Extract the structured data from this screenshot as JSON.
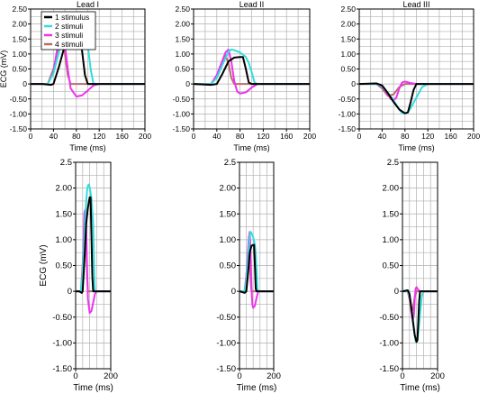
{
  "chart_data": [
    {
      "type": "line",
      "title": "Lead I",
      "xlabel": "Time (ms)",
      "ylabel": "ECG (mV)",
      "xlim": [
        0,
        200
      ],
      "ylim": [
        -1.5,
        2.5
      ],
      "xticks": [
        "0",
        "40",
        "80",
        "120",
        "160",
        "200"
      ],
      "yticks": [
        "-1.50",
        "-1.00",
        "-0.50",
        "0",
        "0.50",
        "1.00",
        "1.50",
        "2.00",
        "2.50"
      ],
      "grid": true,
      "legend": {
        "position": "top-left",
        "entries": [
          "1 stimulus",
          "2 stimuli",
          "3 stimuli",
          "4 stimuli"
        ]
      },
      "series": [
        {
          "name": "1 stimulus",
          "color": "#000000",
          "x": [
            0,
            20,
            30,
            35,
            40,
            50,
            60,
            70,
            80,
            85,
            90,
            95,
            100,
            110,
            120,
            200
          ],
          "y": [
            0,
            0,
            -0.02,
            -0.03,
            0,
            0.6,
            1.3,
            1.62,
            1.82,
            1.82,
            1.1,
            0.3,
            0,
            0,
            0,
            0
          ]
        },
        {
          "name": "2 stimuli",
          "color": "#33dddd",
          "x": [
            0,
            30,
            40,
            50,
            60,
            65,
            70,
            75,
            80,
            90,
            100,
            105,
            110,
            120,
            200
          ],
          "y": [
            0,
            0,
            0.35,
            1.1,
            1.72,
            1.95,
            2.05,
            2.07,
            2.02,
            1.8,
            1.3,
            0.5,
            0,
            0,
            0
          ]
        },
        {
          "name": "3 stimuli",
          "color": "#ee33ee",
          "x": [
            0,
            30,
            40,
            45,
            50,
            55,
            60,
            65,
            70,
            80,
            90,
            100,
            110,
            120,
            200
          ],
          "y": [
            0,
            0,
            0.4,
            1.0,
            1.52,
            1.58,
            1.3,
            0.5,
            -0.15,
            -0.42,
            -0.38,
            -0.22,
            -0.05,
            0,
            0
          ]
        },
        {
          "name": "4 stimuli",
          "color": "#b46e6e",
          "x": [
            0,
            30,
            40,
            50,
            55,
            60,
            65,
            70,
            80,
            200
          ],
          "y": [
            0,
            0,
            0.5,
            1.25,
            1.5,
            1.0,
            0.3,
            0,
            0,
            0
          ]
        }
      ]
    },
    {
      "type": "line",
      "title": "Lead II",
      "xlabel": "Time (ms)",
      "ylabel": "",
      "xlim": [
        0,
        200
      ],
      "ylim": [
        -1.5,
        2.5
      ],
      "xticks": [
        "0",
        "40",
        "80",
        "120",
        "160",
        "200"
      ],
      "yticks": [
        "-1.50",
        "-1.00",
        "-0.50",
        "0",
        "0.50",
        "1.00",
        "1.50",
        "2.00",
        "2.50"
      ],
      "grid": true,
      "series": [
        {
          "name": "1 stimulus",
          "color": "#000000",
          "x": [
            0,
            30,
            40,
            50,
            60,
            70,
            80,
            85,
            90,
            95,
            100,
            110,
            200
          ],
          "y": [
            0,
            -0.03,
            0,
            0.35,
            0.75,
            0.88,
            0.9,
            0.9,
            0.5,
            0.05,
            0,
            0,
            0
          ]
        },
        {
          "name": "2 stimuli",
          "color": "#33dddd",
          "x": [
            0,
            30,
            40,
            50,
            60,
            65,
            70,
            80,
            90,
            95,
            100,
            105,
            110,
            200
          ],
          "y": [
            0,
            0,
            0.2,
            0.65,
            1.08,
            1.15,
            1.13,
            1.05,
            0.9,
            0.7,
            0.4,
            0.05,
            0,
            0
          ]
        },
        {
          "name": "3 stimuli",
          "color": "#ee33ee",
          "x": [
            0,
            30,
            40,
            50,
            55,
            60,
            65,
            70,
            75,
            80,
            90,
            100,
            110,
            200
          ],
          "y": [
            0,
            0,
            0.3,
            0.8,
            1.05,
            1.15,
            0.75,
            0.1,
            -0.25,
            -0.32,
            -0.28,
            -0.12,
            0,
            0
          ]
        },
        {
          "name": "4 stimuli",
          "color": "#b46e6e",
          "x": [
            0,
            30,
            40,
            50,
            55,
            60,
            65,
            70,
            80,
            200
          ],
          "y": [
            0,
            0,
            0.25,
            0.75,
            0.95,
            0.7,
            0.2,
            0,
            0,
            0
          ]
        }
      ]
    },
    {
      "type": "line",
      "title": "Lead III",
      "xlabel": "Time (ms)",
      "ylabel": "",
      "xlim": [
        0,
        200
      ],
      "ylim": [
        -1.5,
        2.5
      ],
      "xticks": [
        "0",
        "40",
        "80",
        "120",
        "160",
        "200"
      ],
      "yticks": [
        "-1.50",
        "-1.00",
        "-0.50",
        "0",
        "0.50",
        "1.00",
        "1.50",
        "2.00",
        "2.50"
      ],
      "grid": true,
      "series": [
        {
          "name": "1 stimulus",
          "color": "#000000",
          "x": [
            0,
            30,
            40,
            50,
            60,
            70,
            80,
            85,
            90,
            95,
            100,
            110,
            200
          ],
          "y": [
            0,
            0.02,
            -0.05,
            -0.3,
            -0.6,
            -0.85,
            -0.98,
            -0.95,
            -0.6,
            -0.2,
            0,
            0,
            0
          ]
        },
        {
          "name": "2 stimuli",
          "color": "#33dddd",
          "x": [
            0,
            30,
            40,
            50,
            60,
            70,
            75,
            80,
            85,
            90,
            100,
            110,
            120,
            200
          ],
          "y": [
            0,
            0,
            -0.08,
            -0.3,
            -0.55,
            -0.85,
            -0.97,
            -0.98,
            -0.95,
            -0.8,
            -0.45,
            -0.1,
            0,
            0
          ]
        },
        {
          "name": "3 stimuli",
          "color": "#ee33ee",
          "x": [
            0,
            30,
            40,
            50,
            55,
            60,
            65,
            70,
            75,
            80,
            90,
            100,
            200
          ],
          "y": [
            0,
            0,
            -0.1,
            -0.35,
            -0.5,
            -0.55,
            -0.45,
            -0.15,
            0.05,
            0.08,
            0.03,
            0,
            0
          ]
        },
        {
          "name": "4 stimuli",
          "color": "#b46e6e",
          "x": [
            0,
            30,
            40,
            50,
            60,
            70,
            80,
            200
          ],
          "y": [
            0,
            0,
            -0.15,
            -0.4,
            -0.35,
            -0.1,
            0,
            0
          ]
        }
      ]
    },
    {
      "type": "line",
      "title": "",
      "xlabel": "Time (ms)",
      "ylabel": "ECG (mV)",
      "xlim": [
        0,
        200
      ],
      "ylim": [
        -1.5,
        2.5
      ],
      "xticks": [
        "0",
        "200"
      ],
      "yticks": [
        "-1.50",
        "-1.00",
        "-0.50",
        "0",
        "0.50",
        "1.00",
        "1.50",
        "2.00",
        "2.5"
      ],
      "grid": true,
      "same_data_as": "Lead I"
    },
    {
      "type": "line",
      "title": "",
      "xlabel": "Time (ms)",
      "ylabel": "",
      "xlim": [
        0,
        200
      ],
      "ylim": [
        -1.5,
        2.5
      ],
      "xticks": [
        "0",
        "200"
      ],
      "yticks": [
        "-1.50",
        "-1.00",
        "-0.50",
        "0",
        "0.50",
        "1.00",
        "1.50",
        "2.00",
        "2.5"
      ],
      "grid": true,
      "same_data_as": "Lead II"
    },
    {
      "type": "line",
      "title": "",
      "xlabel": "Time (ms)",
      "ylabel": "",
      "xlim": [
        0,
        200
      ],
      "ylim": [
        -1.5,
        2.5
      ],
      "xticks": [
        "0",
        "200"
      ],
      "yticks": [
        "-1.50",
        "-1.00",
        "-0.50",
        "0",
        "0.50",
        "1.00",
        "1.50",
        "2.00",
        "2.5"
      ],
      "grid": true,
      "same_data_as": "Lead III"
    }
  ]
}
